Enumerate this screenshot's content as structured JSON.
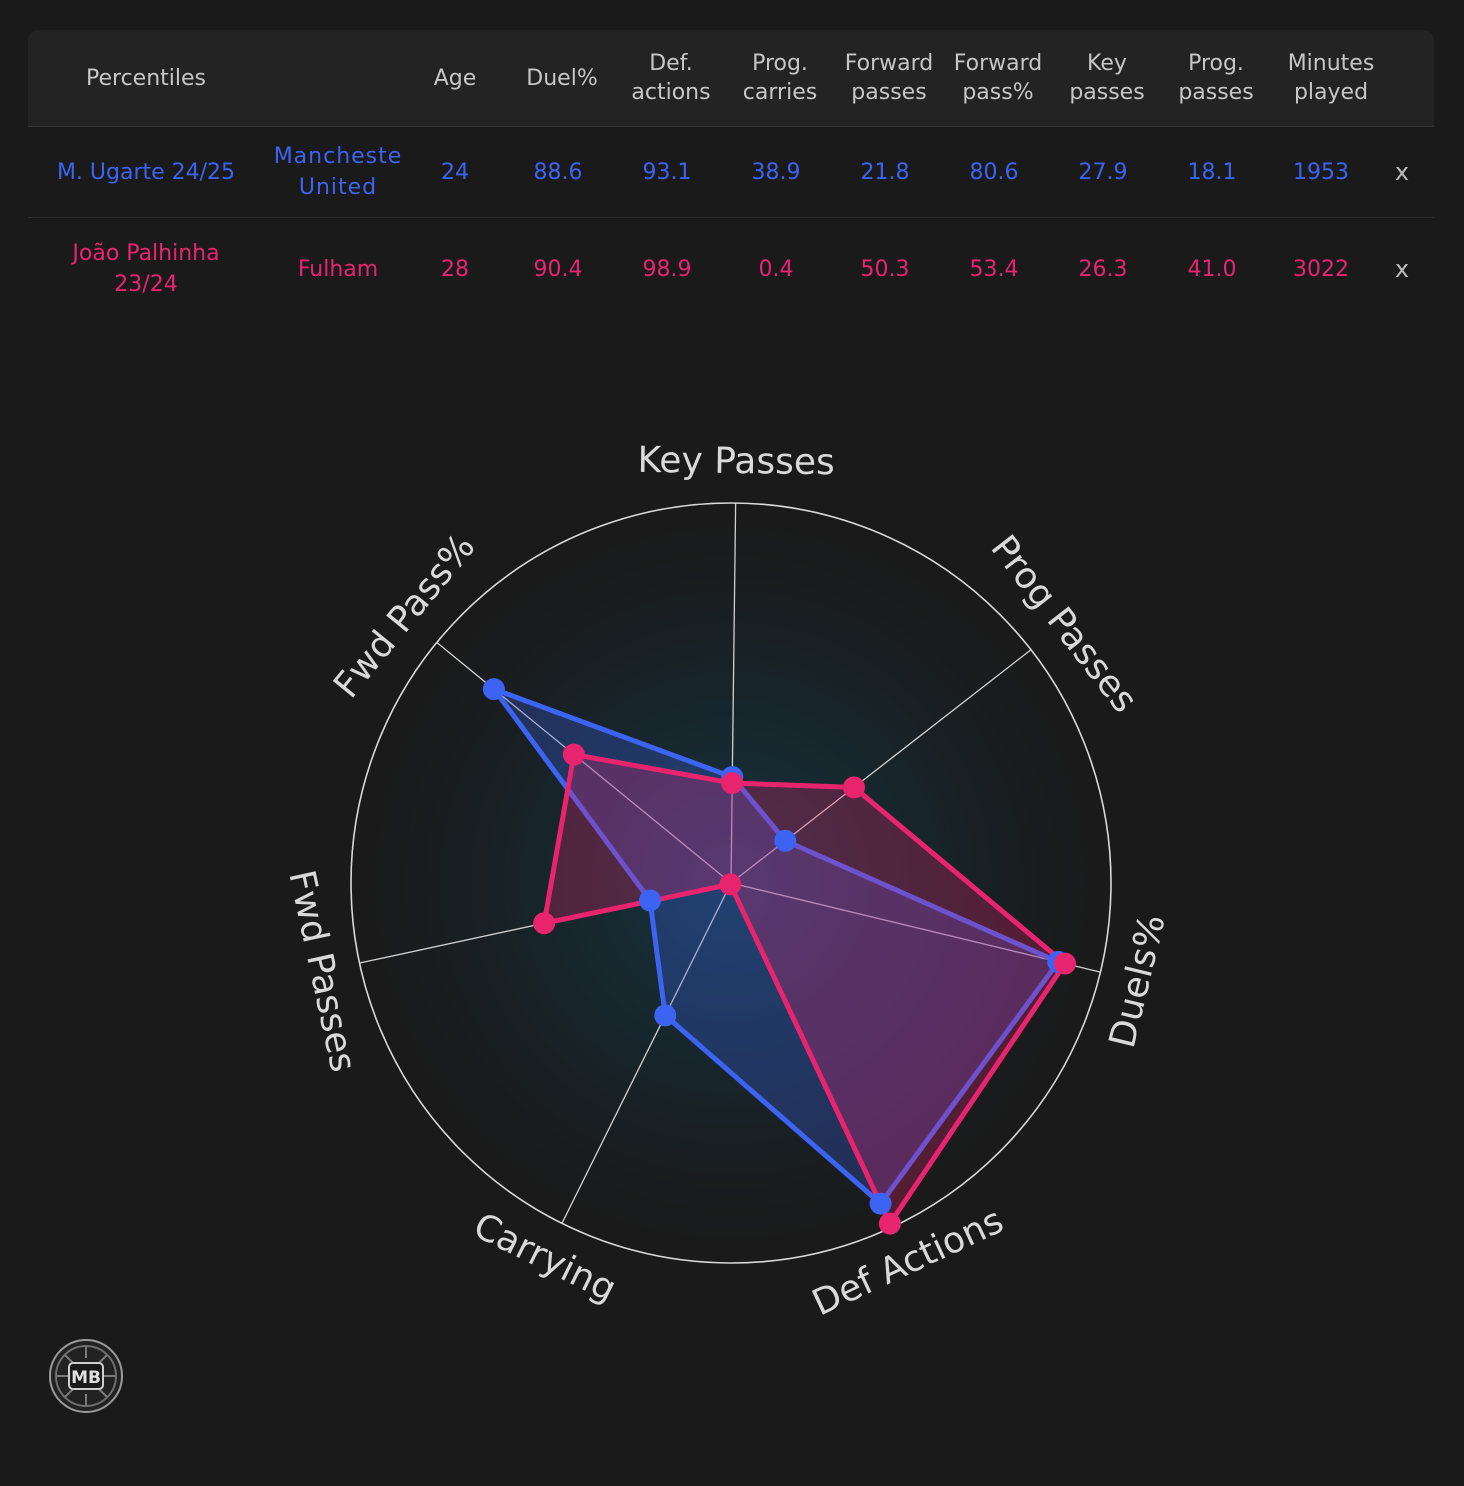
{
  "table": {
    "headers": [
      "Percentiles",
      "",
      "Age",
      "Duel%",
      "Def.\nactions",
      "Prog.\ncarries",
      "Forward\npasses",
      "Forward\npass%",
      "Key\npasses",
      "Prog.\npasses",
      "Minutes\nplayed",
      ""
    ],
    "rows": [
      {
        "player": "M. Ugarte 24/25",
        "team": "Mancheste\nUnited",
        "values": [
          "24",
          "88.6",
          "93.1",
          "38.9",
          "21.8",
          "80.6",
          "27.9",
          "18.1",
          "1953"
        ],
        "remove": "x"
      },
      {
        "player": "João Palhinha\n23/24",
        "team": "Fulham",
        "values": [
          "28",
          "90.4",
          "98.9",
          "0.4",
          "50.3",
          "53.4",
          "26.3",
          "41.0",
          "3022"
        ],
        "remove": "x"
      }
    ]
  },
  "chart_data": {
    "type": "radar",
    "axes": [
      "Key Passes",
      "Prog Passes",
      "Duels%",
      "Def Actions",
      "Carrying",
      "Fwd Passes",
      "Fwd Pass%"
    ],
    "range": [
      0,
      100
    ],
    "grid": false,
    "series": [
      {
        "name": "M. Ugarte 24/25",
        "color": "#3d63f2",
        "values": [
          27.9,
          18.1,
          88.6,
          93.1,
          38.9,
          21.8,
          80.6
        ]
      },
      {
        "name": "João Palhinha 23/24",
        "color": "#e8246f",
        "values": [
          26.3,
          41.0,
          90.4,
          98.9,
          0.4,
          50.3,
          53.4
        ]
      }
    ]
  },
  "logo": {
    "text": "MB"
  }
}
